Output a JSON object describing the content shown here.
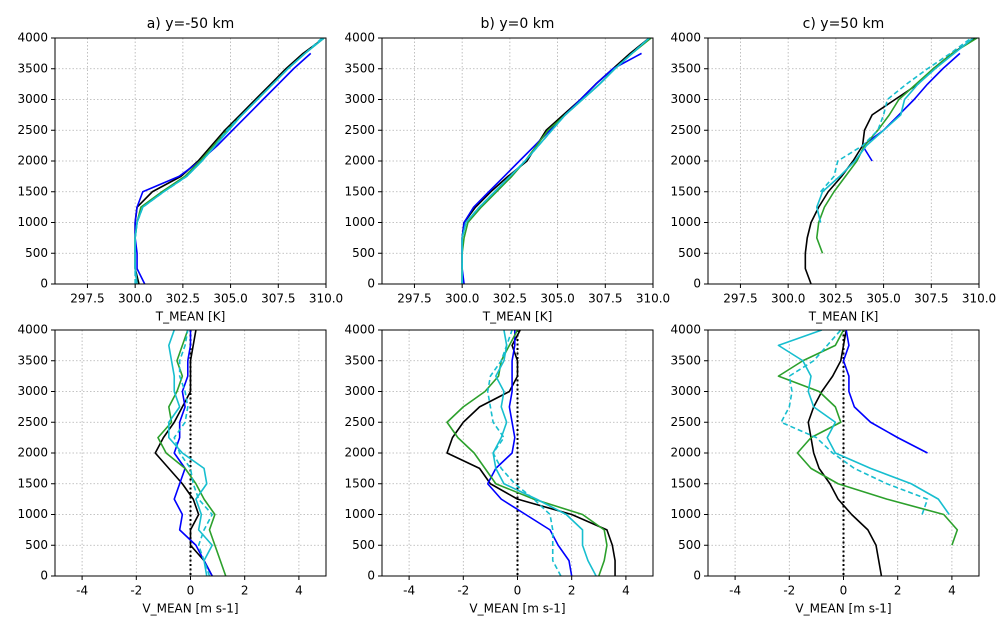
{
  "chart_data": [
    {
      "type": "line",
      "title": "a) y=-50 km",
      "x_label": "T_MEAN [K]",
      "xlim": [
        295.8,
        310
      ],
      "xticks": [
        297.5,
        {
          "value": 300,
          "label": "300.0"
        },
        302.5,
        {
          "value": 305,
          "label": "305.0"
        },
        307.5,
        {
          "value": 310,
          "label": "310.0"
        }
      ],
      "ylim": [
        0,
        4000
      ],
      "yticks": [
        0,
        500,
        1000,
        1500,
        2000,
        2500,
        3000,
        3500,
        4000
      ],
      "grid": true,
      "y": [
        0,
        250,
        500,
        750,
        1000,
        1250,
        1500,
        1750,
        2000,
        2250,
        2500,
        2750,
        3000,
        3250,
        3500,
        3750,
        4000
      ],
      "series": [
        {
          "color": "#000000",
          "values": [
            300.2,
            300.0,
            300.0,
            300.0,
            300.0,
            300.1,
            300.9,
            302.4,
            303.3,
            304.0,
            304.7,
            305.5,
            306.3,
            307.1,
            307.9,
            308.8,
            309.9
          ]
        },
        {
          "color": "#0000ff",
          "values": [
            300.5,
            300.1,
            300.1,
            300.0,
            300.0,
            300.1,
            300.4,
            302.3,
            303.4,
            304.3,
            305.1,
            305.9,
            306.7,
            307.5,
            308.3,
            309.2,
            null
          ]
        },
        {
          "color": "#2ca02c",
          "values": [
            300.1,
            300.0,
            300.0,
            300.0,
            300.1,
            300.3,
            301.4,
            302.6,
            303.4,
            304.1,
            304.8,
            305.6,
            306.4,
            307.2,
            308.0,
            308.9,
            309.9
          ]
        },
        {
          "color": "#17becf",
          "values": [
            300.1,
            300.0,
            300.0,
            300.0,
            300.1,
            300.4,
            301.5,
            302.7,
            303.5,
            304.2,
            304.9,
            305.6,
            306.4,
            307.2,
            308.0,
            308.9,
            309.9
          ]
        },
        {
          "color": "#17becf",
          "dash": true,
          "values": [
            300.0,
            300.0,
            300.0,
            300.0,
            300.1,
            300.4,
            301.5,
            302.7,
            303.5,
            304.2,
            304.8,
            305.6,
            306.4,
            307.2,
            308.0,
            308.9,
            309.8
          ]
        }
      ]
    },
    {
      "type": "line",
      "title": "b) y=0 km",
      "x_label": "T_MEAN [K]",
      "xlim": [
        295.8,
        310
      ],
      "xticks": [
        297.5,
        {
          "value": 300,
          "label": "300.0"
        },
        302.5,
        {
          "value": 305,
          "label": "305.0"
        },
        307.5,
        {
          "value": 310,
          "label": "310.0"
        }
      ],
      "ylim": [
        0,
        4000
      ],
      "yticks": [
        0,
        500,
        1000,
        1500,
        2000,
        2500,
        3000,
        3500,
        4000
      ],
      "grid": true,
      "y": [
        0,
        250,
        500,
        750,
        1000,
        1250,
        1500,
        1750,
        2000,
        2250,
        2500,
        2750,
        3000,
        3250,
        3500,
        3750,
        4000
      ],
      "series": [
        {
          "color": "#000000",
          "values": [
            300.0,
            300.0,
            300.0,
            300.0,
            300.1,
            300.7,
            301.5,
            302.4,
            303.4,
            303.9,
            304.4,
            305.3,
            306.2,
            307.0,
            307.9,
            308.8,
            309.8
          ]
        },
        {
          "color": "#0000ff",
          "values": [
            300.1,
            300.0,
            300.0,
            300.0,
            300.1,
            300.6,
            301.4,
            302.2,
            303.0,
            303.8,
            304.6,
            305.4,
            306.2,
            307.0,
            307.9,
            309.4,
            null
          ]
        },
        {
          "color": "#2ca02c",
          "values": [
            300.0,
            300.0,
            300.0,
            300.1,
            300.3,
            301.0,
            301.8,
            302.6,
            303.3,
            303.9,
            304.5,
            305.4,
            306.3,
            307.2,
            308.0,
            308.9,
            309.9
          ]
        },
        {
          "color": "#17becf",
          "values": [
            300.0,
            300.0,
            300.0,
            300.0,
            300.2,
            300.9,
            301.7,
            302.5,
            303.3,
            304.0,
            304.7,
            305.4,
            306.3,
            307.2,
            308.0,
            308.9,
            309.8
          ]
        },
        {
          "color": "#17becf",
          "dash": true,
          "values": [
            300.0,
            300.0,
            300.0,
            300.0,
            300.2,
            300.9,
            301.7,
            302.5,
            303.3,
            304.0,
            304.7,
            305.4,
            306.3,
            307.2,
            308.0,
            308.9,
            309.8
          ]
        }
      ]
    },
    {
      "type": "line",
      "title": "c) y=50 km",
      "x_label": "T_MEAN [K]",
      "xlim": [
        295.8,
        310
      ],
      "xticks": [
        297.5,
        {
          "value": 300,
          "label": "300.0"
        },
        302.5,
        {
          "value": 305,
          "label": "305.0"
        },
        307.5,
        {
          "value": 310,
          "label": "310.0"
        }
      ],
      "ylim": [
        0,
        4000
      ],
      "yticks": [
        0,
        500,
        1000,
        1500,
        2000,
        2500,
        3000,
        3500,
        4000
      ],
      "grid": true,
      "y": [
        0,
        250,
        500,
        750,
        1000,
        1250,
        1500,
        1750,
        2000,
        2250,
        2500,
        2750,
        3000,
        3250,
        3500,
        3750,
        4000
      ],
      "series": [
        {
          "color": "#000000",
          "values": [
            301.2,
            300.9,
            300.9,
            301.0,
            301.2,
            301.6,
            302.1,
            302.8,
            303.4,
            303.9,
            304.0,
            304.4,
            305.6,
            306.8,
            307.6,
            308.6,
            309.8
          ]
        },
        {
          "color": "#0000ff",
          "values": [
            null,
            null,
            null,
            null,
            null,
            null,
            null,
            null,
            304.4,
            303.9,
            305.0,
            305.8,
            306.6,
            307.3,
            308.1,
            309.0,
            null
          ]
        },
        {
          "color": "#2ca02c",
          "values": [
            null,
            null,
            301.8,
            301.5,
            301.6,
            301.9,
            302.4,
            303.0,
            303.6,
            304.0,
            304.7,
            305.3,
            305.8,
            306.7,
            307.6,
            308.6,
            309.9
          ]
        },
        {
          "color": "#17becf",
          "values": [
            null,
            null,
            null,
            null,
            301.7,
            301.5,
            301.8,
            302.7,
            303.5,
            304.1,
            305.0,
            305.9,
            306.1,
            306.8,
            307.7,
            308.7,
            309.7
          ]
        },
        {
          "color": "#17becf",
          "dash": true,
          "values": [
            null,
            null,
            null,
            null,
            null,
            null,
            301.7,
            302.4,
            302.6,
            303.9,
            304.7,
            305.0,
            305.2,
            306.2,
            307.3,
            308.5,
            309.6
          ]
        }
      ]
    },
    {
      "type": "line",
      "x_label": "V_MEAN [m s-1]",
      "xlim": [
        -5,
        5
      ],
      "xticks": [
        -4,
        -2,
        0,
        2,
        4
      ],
      "ylim": [
        0,
        4000
      ],
      "yticks": [
        0,
        500,
        1000,
        1500,
        2000,
        2500,
        3000,
        3500,
        4000
      ],
      "grid": true,
      "vline": 0,
      "y": [
        0,
        250,
        500,
        750,
        1000,
        1250,
        1500,
        1750,
        2000,
        2250,
        2500,
        2750,
        3000,
        3250,
        3500,
        3750,
        4000
      ],
      "series": [
        {
          "color": "#000000",
          "values": [
            0.8,
            0.5,
            0.0,
            0.0,
            0.3,
            0.1,
            -0.3,
            -0.8,
            -1.3,
            -1.0,
            -0.6,
            -0.3,
            0.0,
            0.0,
            0.0,
            0.1,
            0.2
          ]
        },
        {
          "color": "#0000ff",
          "values": [
            0.8,
            0.5,
            0.2,
            -0.4,
            -0.3,
            -0.6,
            -0.4,
            -0.2,
            -0.6,
            -0.4,
            -0.4,
            -0.2,
            -0.3,
            -0.1,
            -0.1,
            0.0,
            0.0
          ]
        },
        {
          "color": "#2ca02c",
          "values": [
            1.3,
            1.1,
            0.9,
            0.7,
            0.9,
            0.5,
            0.2,
            -0.2,
            -0.9,
            -1.2,
            -0.7,
            -0.8,
            -0.5,
            -0.3,
            -0.5,
            -0.3,
            -0.1
          ]
        },
        {
          "color": "#17becf",
          "values": [
            0.6,
            0.5,
            0.8,
            0.3,
            0.4,
            0.2,
            0.6,
            0.5,
            -0.3,
            -0.8,
            -0.8,
            -0.4,
            -0.6,
            -0.6,
            -0.7,
            -0.8,
            -0.6
          ]
        },
        {
          "color": "#17becf",
          "dash": true,
          "values": [
            0.7,
            0.5,
            0.3,
            0.5,
            0.8,
            0.3,
            0.1,
            0.0,
            -0.4,
            -0.6,
            -0.2,
            -0.1,
            -0.2,
            -0.4,
            -0.4,
            -0.2,
            -0.1
          ]
        }
      ]
    },
    {
      "type": "line",
      "x_label": "V_MEAN [m s-1]",
      "xlim": [
        -5,
        5
      ],
      "xticks": [
        -4,
        -2,
        0,
        2,
        4
      ],
      "ylim": [
        0,
        4000
      ],
      "yticks": [
        0,
        500,
        1000,
        1500,
        2000,
        2500,
        3000,
        3500,
        4000
      ],
      "grid": true,
      "vline": 0,
      "y": [
        0,
        250,
        500,
        750,
        1000,
        1250,
        1500,
        1750,
        2000,
        2250,
        2500,
        2750,
        3000,
        3250,
        3500,
        3750,
        4000
      ],
      "series": [
        {
          "color": "#000000",
          "values": [
            3.6,
            3.6,
            3.5,
            3.3,
            2.0,
            0.0,
            -1.0,
            -1.4,
            -2.6,
            -2.4,
            -2.0,
            -1.4,
            -0.3,
            0.0,
            0.0,
            -0.2,
            0.1
          ]
        },
        {
          "color": "#0000ff",
          "values": [
            2.0,
            1.9,
            1.5,
            1.2,
            0.3,
            -0.6,
            -1.1,
            -0.8,
            -0.2,
            -0.1,
            -0.2,
            -0.3,
            -0.2,
            -0.2,
            -0.2,
            -0.1,
            -0.1
          ]
        },
        {
          "color": "#2ca02c",
          "values": [
            3.0,
            3.2,
            3.3,
            3.2,
            2.4,
            0.6,
            -0.8,
            -1.2,
            -1.6,
            -2.2,
            -2.6,
            -2.0,
            -1.2,
            -0.7,
            -0.6,
            -0.3,
            0.0
          ]
        },
        {
          "color": "#17becf",
          "values": [
            2.9,
            2.6,
            2.4,
            2.4,
            1.8,
            0.7,
            -0.5,
            -0.8,
            -0.9,
            -0.6,
            -0.4,
            -0.6,
            -0.5,
            -0.8,
            -0.5,
            -0.4,
            -0.5
          ]
        },
        {
          "color": "#17becf",
          "dash": true,
          "values": [
            1.6,
            1.3,
            1.3,
            1.3,
            1.2,
            0.6,
            -0.1,
            -0.6,
            -0.9,
            -0.5,
            -0.9,
            -1.0,
            -1.1,
            -1.0,
            -0.6,
            -0.4,
            -0.2
          ]
        }
      ]
    },
    {
      "type": "line",
      "x_label": "V_MEAN [m s-1]",
      "xlim": [
        -5,
        5
      ],
      "xticks": [
        -4,
        -2,
        0,
        2,
        4
      ],
      "ylim": [
        0,
        4000
      ],
      "yticks": [
        0,
        500,
        1000,
        1500,
        2000,
        2500,
        3000,
        3500,
        4000
      ],
      "grid": true,
      "vline": 0,
      "y": [
        0,
        250,
        500,
        750,
        1000,
        1250,
        1500,
        1750,
        2000,
        2250,
        2500,
        2750,
        3000,
        3250,
        3500,
        3750,
        4000
      ],
      "series": [
        {
          "color": "#000000",
          "values": [
            1.4,
            1.3,
            1.2,
            0.9,
            0.3,
            -0.2,
            -0.5,
            -0.9,
            -1.1,
            -1.2,
            -1.3,
            -1.1,
            -0.8,
            -0.4,
            -0.1,
            0.0,
            0.1
          ]
        },
        {
          "color": "#0000ff",
          "values": [
            null,
            null,
            null,
            null,
            null,
            null,
            null,
            null,
            3.1,
            2.0,
            1.0,
            0.4,
            0.2,
            0.2,
            0.0,
            0.2,
            0.1
          ]
        },
        {
          "color": "#2ca02c",
          "values": [
            null,
            null,
            4.0,
            4.2,
            3.7,
            1.6,
            -0.2,
            -1.2,
            -1.7,
            -1.2,
            -0.1,
            -0.3,
            -0.9,
            -2.4,
            -1.5,
            -0.3,
            0.0
          ]
        },
        {
          "color": "#17becf",
          "values": [
            null,
            null,
            null,
            null,
            3.9,
            3.5,
            2.5,
            1.0,
            -0.3,
            -0.6,
            -0.3,
            -1.1,
            -1.3,
            -1.2,
            -1.5,
            -2.4,
            -0.8
          ]
        },
        {
          "color": "#17becf",
          "dash": true,
          "values": [
            null,
            null,
            null,
            null,
            2.9,
            3.1,
            1.6,
            0.4,
            -0.4,
            -1.0,
            -2.3,
            -2.0,
            -1.9,
            -2.0,
            -1.1,
            -0.6,
            -0.1
          ]
        }
      ]
    }
  ]
}
